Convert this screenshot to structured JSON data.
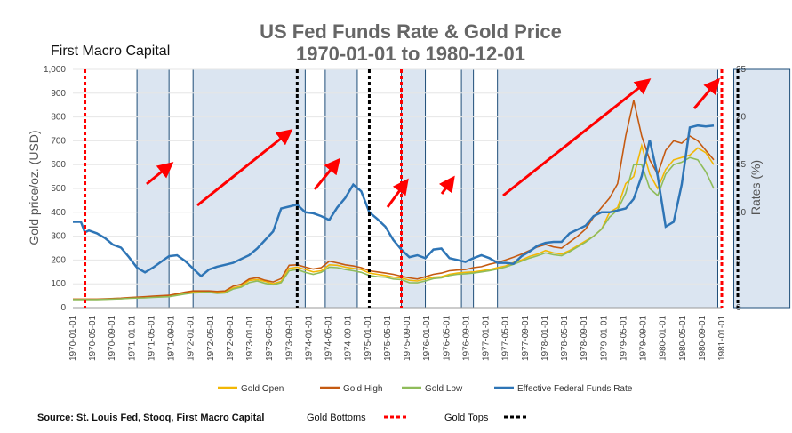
{
  "chart_data": {
    "type": "line",
    "title_line1": "US Fed Funds Rate & Gold Price",
    "title_line2": "1970-01-01 to 1980-12-01",
    "brand": "First Macro Capital",
    "ylabel_left": "Gold price/oz. (USD)",
    "ylabel_right": "Rates (%)",
    "ylim_left": [
      0,
      1000
    ],
    "ylim_right": [
      0,
      25
    ],
    "yticks_left": [
      "0",
      "100",
      "200",
      "300",
      "400",
      "500",
      "600",
      "700",
      "800",
      "900",
      "1,000"
    ],
    "yticks_right": [
      "0",
      "5",
      "10",
      "15",
      "20",
      "25"
    ],
    "x_tick_labels": [
      "1970-01-01",
      "1970-05-01",
      "1970-09-01",
      "1971-01-01",
      "1971-05-01",
      "1971-09-01",
      "1972-01-01",
      "1972-05-01",
      "1972-09-01",
      "1973-01-01",
      "1973-05-01",
      "1973-09-01",
      "1974-01-01",
      "1974-05-01",
      "1974-09-01",
      "1975-01-01",
      "1975-05-01",
      "1975-09-01",
      "1976-01-01",
      "1976-05-01",
      "1976-09-01",
      "1977-01-01",
      "1977-05-01",
      "1977-09-01",
      "1978-01-01",
      "1978-05-01",
      "1978-09-01",
      "1979-01-01",
      "1979-05-01",
      "1979-09-01",
      "1980-01-01",
      "1980-05-01",
      "1980-09-01",
      "1981-01-01"
    ],
    "series": [
      {
        "name": "Gold Open",
        "color": "#f2b705",
        "points": [
          [
            0,
            35
          ],
          [
            6,
            35
          ],
          [
            12,
            38
          ],
          [
            14,
            40
          ],
          [
            18,
            43
          ],
          [
            20,
            45
          ],
          [
            24,
            48
          ],
          [
            28,
            60
          ],
          [
            30,
            65
          ],
          [
            34,
            68
          ],
          [
            36,
            64
          ],
          [
            38,
            66
          ],
          [
            40,
            82
          ],
          [
            42,
            90
          ],
          [
            44,
            114
          ],
          [
            46,
            118
          ],
          [
            48,
            110
          ],
          [
            50,
            100
          ],
          [
            52,
            110
          ],
          [
            54,
            165
          ],
          [
            56,
            170
          ],
          [
            58,
            160
          ],
          [
            60,
            150
          ],
          [
            62,
            155
          ],
          [
            64,
            180
          ],
          [
            66,
            178
          ],
          [
            68,
            170
          ],
          [
            70,
            165
          ],
          [
            72,
            160
          ],
          [
            74,
            145
          ],
          [
            76,
            140
          ],
          [
            78,
            135
          ],
          [
            80,
            128
          ],
          [
            82,
            125
          ],
          [
            84,
            115
          ],
          [
            86,
            112
          ],
          [
            88,
            120
          ],
          [
            90,
            128
          ],
          [
            92,
            130
          ],
          [
            94,
            140
          ],
          [
            96,
            145
          ],
          [
            98,
            148
          ],
          [
            100,
            150
          ],
          [
            102,
            155
          ],
          [
            104,
            160
          ],
          [
            106,
            168
          ],
          [
            108,
            175
          ],
          [
            110,
            190
          ],
          [
            112,
            200
          ],
          [
            114,
            215
          ],
          [
            116,
            225
          ],
          [
            118,
            240
          ],
          [
            120,
            230
          ],
          [
            122,
            225
          ],
          [
            124,
            240
          ],
          [
            126,
            260
          ],
          [
            128,
            280
          ],
          [
            130,
            300
          ],
          [
            132,
            330
          ],
          [
            134,
            400
          ],
          [
            136,
            420
          ],
          [
            138,
            520
          ],
          [
            140,
            550
          ],
          [
            142,
            680
          ],
          [
            144,
            560
          ],
          [
            146,
            500
          ],
          [
            148,
            580
          ],
          [
            150,
            620
          ],
          [
            152,
            630
          ],
          [
            154,
            640
          ],
          [
            156,
            670
          ],
          [
            158,
            650
          ],
          [
            160,
            600
          ]
        ]
      },
      {
        "name": "Gold High",
        "color": "#c55a11",
        "points": [
          [
            0,
            36
          ],
          [
            6,
            36
          ],
          [
            12,
            40
          ],
          [
            14,
            42
          ],
          [
            18,
            46
          ],
          [
            20,
            48
          ],
          [
            24,
            52
          ],
          [
            28,
            65
          ],
          [
            30,
            70
          ],
          [
            34,
            70
          ],
          [
            36,
            68
          ],
          [
            38,
            70
          ],
          [
            40,
            90
          ],
          [
            42,
            98
          ],
          [
            44,
            120
          ],
          [
            46,
            126
          ],
          [
            48,
            115
          ],
          [
            50,
            108
          ],
          [
            52,
            122
          ],
          [
            54,
            178
          ],
          [
            56,
            180
          ],
          [
            58,
            170
          ],
          [
            60,
            162
          ],
          [
            62,
            168
          ],
          [
            64,
            195
          ],
          [
            66,
            188
          ],
          [
            68,
            180
          ],
          [
            70,
            175
          ],
          [
            72,
            168
          ],
          [
            74,
            155
          ],
          [
            76,
            150
          ],
          [
            78,
            145
          ],
          [
            80,
            140
          ],
          [
            82,
            132
          ],
          [
            84,
            125
          ],
          [
            86,
            120
          ],
          [
            88,
            130
          ],
          [
            90,
            140
          ],
          [
            92,
            145
          ],
          [
            94,
            155
          ],
          [
            96,
            158
          ],
          [
            98,
            160
          ],
          [
            100,
            168
          ],
          [
            102,
            172
          ],
          [
            104,
            182
          ],
          [
            106,
            190
          ],
          [
            108,
            200
          ],
          [
            110,
            212
          ],
          [
            112,
            225
          ],
          [
            114,
            240
          ],
          [
            116,
            255
          ],
          [
            118,
            265
          ],
          [
            120,
            255
          ],
          [
            122,
            250
          ],
          [
            124,
            275
          ],
          [
            126,
            300
          ],
          [
            128,
            330
          ],
          [
            130,
            380
          ],
          [
            132,
            420
          ],
          [
            134,
            460
          ],
          [
            136,
            520
          ],
          [
            138,
            720
          ],
          [
            140,
            870
          ],
          [
            142,
            720
          ],
          [
            144,
            620
          ],
          [
            146,
            560
          ],
          [
            148,
            660
          ],
          [
            150,
            700
          ],
          [
            152,
            690
          ],
          [
            154,
            720
          ],
          [
            156,
            700
          ],
          [
            158,
            660
          ],
          [
            160,
            620
          ]
        ]
      },
      {
        "name": "Gold Low",
        "color": "#8fbc5a",
        "points": [
          [
            0,
            34
          ],
          [
            6,
            34
          ],
          [
            12,
            37
          ],
          [
            14,
            39
          ],
          [
            18,
            41
          ],
          [
            20,
            43
          ],
          [
            24,
            46
          ],
          [
            28,
            57
          ],
          [
            30,
            62
          ],
          [
            34,
            64
          ],
          [
            36,
            60
          ],
          [
            38,
            62
          ],
          [
            40,
            78
          ],
          [
            42,
            86
          ],
          [
            44,
            105
          ],
          [
            46,
            112
          ],
          [
            48,
            102
          ],
          [
            50,
            96
          ],
          [
            52,
            105
          ],
          [
            54,
            155
          ],
          [
            56,
            160
          ],
          [
            58,
            148
          ],
          [
            60,
            140
          ],
          [
            62,
            148
          ],
          [
            64,
            170
          ],
          [
            66,
            168
          ],
          [
            68,
            160
          ],
          [
            70,
            155
          ],
          [
            72,
            148
          ],
          [
            74,
            135
          ],
          [
            76,
            130
          ],
          [
            78,
            128
          ],
          [
            80,
            120
          ],
          [
            82,
            118
          ],
          [
            84,
            105
          ],
          [
            86,
            104
          ],
          [
            88,
            112
          ],
          [
            90,
            122
          ],
          [
            92,
            125
          ],
          [
            94,
            135
          ],
          [
            96,
            140
          ],
          [
            98,
            142
          ],
          [
            100,
            145
          ],
          [
            102,
            150
          ],
          [
            104,
            155
          ],
          [
            106,
            162
          ],
          [
            108,
            170
          ],
          [
            110,
            182
          ],
          [
            112,
            195
          ],
          [
            114,
            208
          ],
          [
            116,
            218
          ],
          [
            118,
            230
          ],
          [
            120,
            222
          ],
          [
            122,
            218
          ],
          [
            124,
            235
          ],
          [
            126,
            255
          ],
          [
            128,
            275
          ],
          [
            130,
            300
          ],
          [
            132,
            330
          ],
          [
            134,
            380
          ],
          [
            136,
            410
          ],
          [
            138,
            480
          ],
          [
            140,
            600
          ],
          [
            142,
            600
          ],
          [
            144,
            500
          ],
          [
            146,
            470
          ],
          [
            148,
            560
          ],
          [
            150,
            600
          ],
          [
            152,
            610
          ],
          [
            154,
            630
          ],
          [
            156,
            620
          ],
          [
            158,
            570
          ],
          [
            160,
            500
          ]
        ]
      },
      {
        "name": "Effective Federal Funds Rate",
        "color": "#2e75b6",
        "axis": "right",
        "points": [
          [
            0,
            9.0
          ],
          [
            2,
            9.0
          ],
          [
            3,
            7.9
          ],
          [
            4,
            8.1
          ],
          [
            6,
            7.8
          ],
          [
            8,
            7.3
          ],
          [
            10,
            6.6
          ],
          [
            12,
            6.3
          ],
          [
            14,
            5.3
          ],
          [
            16,
            4.2
          ],
          [
            18,
            3.7
          ],
          [
            20,
            4.2
          ],
          [
            22,
            4.8
          ],
          [
            24,
            5.4
          ],
          [
            26,
            5.5
          ],
          [
            28,
            4.9
          ],
          [
            30,
            4.1
          ],
          [
            32,
            3.3
          ],
          [
            34,
            4.0
          ],
          [
            36,
            4.3
          ],
          [
            38,
            4.5
          ],
          [
            40,
            4.7
          ],
          [
            42,
            5.1
          ],
          [
            44,
            5.5
          ],
          [
            46,
            6.2
          ],
          [
            48,
            7.1
          ],
          [
            50,
            8.0
          ],
          [
            52,
            10.4
          ],
          [
            54,
            10.6
          ],
          [
            56,
            10.8
          ],
          [
            58,
            10.0
          ],
          [
            60,
            9.9
          ],
          [
            62,
            9.6
          ],
          [
            64,
            9.2
          ],
          [
            66,
            10.5
          ],
          [
            68,
            11.5
          ],
          [
            70,
            12.9
          ],
          [
            72,
            12.2
          ],
          [
            74,
            10.0
          ],
          [
            76,
            9.3
          ],
          [
            78,
            8.5
          ],
          [
            80,
            7.1
          ],
          [
            82,
            6.1
          ],
          [
            84,
            5.3
          ],
          [
            86,
            5.5
          ],
          [
            88,
            5.2
          ],
          [
            90,
            6.1
          ],
          [
            92,
            6.2
          ],
          [
            94,
            5.2
          ],
          [
            96,
            5.0
          ],
          [
            98,
            4.8
          ],
          [
            100,
            5.2
          ],
          [
            102,
            5.5
          ],
          [
            104,
            5.2
          ],
          [
            106,
            4.7
          ],
          [
            108,
            4.7
          ],
          [
            110,
            4.6
          ],
          [
            112,
            5.4
          ],
          [
            114,
            5.9
          ],
          [
            116,
            6.5
          ],
          [
            118,
            6.8
          ],
          [
            120,
            6.9
          ],
          [
            122,
            6.9
          ],
          [
            124,
            7.8
          ],
          [
            126,
            8.2
          ],
          [
            128,
            8.6
          ],
          [
            130,
            9.6
          ],
          [
            132,
            10.0
          ],
          [
            134,
            10.0
          ],
          [
            136,
            10.2
          ],
          [
            138,
            10.4
          ],
          [
            140,
            11.4
          ],
          [
            142,
            13.8
          ],
          [
            144,
            17.6
          ],
          [
            146,
            13.8
          ],
          [
            148,
            8.5
          ],
          [
            150,
            9.0
          ],
          [
            152,
            12.9
          ],
          [
            154,
            18.9
          ],
          [
            156,
            19.1
          ],
          [
            158,
            19.0
          ],
          [
            160,
            19.1
          ]
        ]
      }
    ],
    "legend_position": "bottom",
    "gold_bottoms_x": [
      3,
      82,
      162
    ],
    "gold_tops_x": [
      56,
      74,
      166
    ],
    "x_month_span": 132,
    "footer_source": "Source: St. Louis Fed, Stooq, First Macro Capital",
    "footer_bottoms_label": "Gold Bottoms",
    "footer_tops_label": "Gold Tops",
    "colors": {
      "bottoms": "#ff0000",
      "tops": "#000000",
      "box": "#1f4e79",
      "box_fill": "#dbe5f1",
      "arrow": "#ff0000"
    }
  }
}
